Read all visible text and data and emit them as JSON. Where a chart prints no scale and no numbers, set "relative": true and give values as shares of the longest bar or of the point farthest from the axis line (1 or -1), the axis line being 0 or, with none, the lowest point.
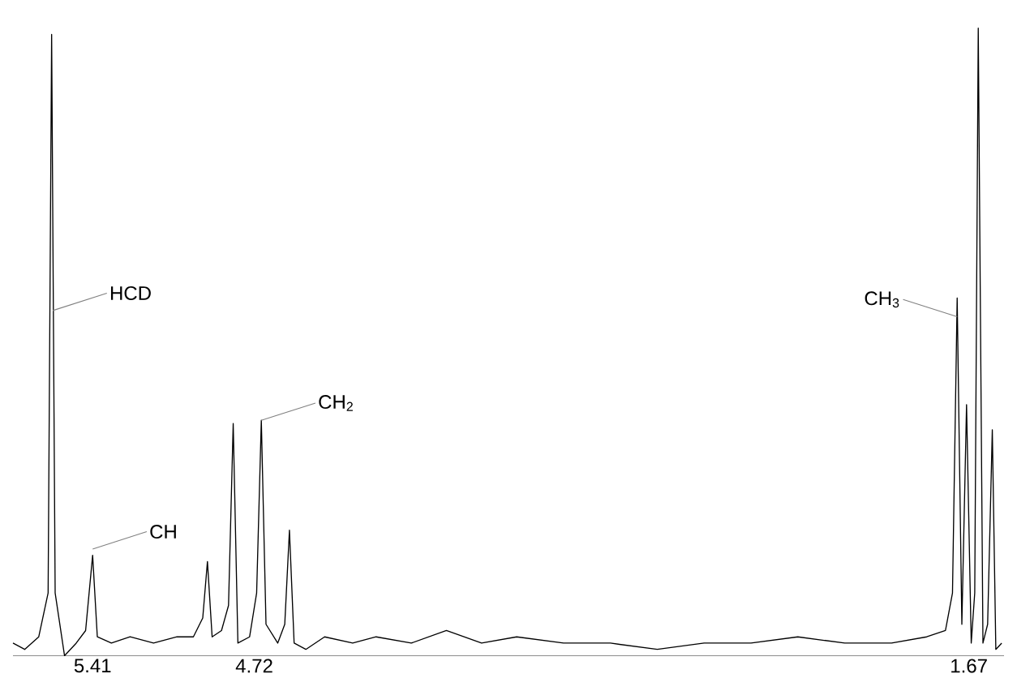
{
  "chart_data": {
    "type": "line",
    "relative": true,
    "color": "#000000",
    "line_style": "solid",
    "marker": "none",
    "tick_labels": "x",
    "xlim": [
      5.75,
      1.52
    ],
    "xticks": [
      5.41,
      4.72,
      1.67
    ],
    "x": [
      5.75,
      5.7,
      5.64,
      5.6,
      5.585,
      5.57,
      5.53,
      5.48,
      5.44,
      5.41,
      5.39,
      5.33,
      5.25,
      5.15,
      5.05,
      4.98,
      4.94,
      4.92,
      4.9,
      4.86,
      4.83,
      4.81,
      4.79,
      4.74,
      4.71,
      4.69,
      4.67,
      4.62,
      4.59,
      4.57,
      4.55,
      4.5,
      4.42,
      4.3,
      4.2,
      4.05,
      3.9,
      3.75,
      3.6,
      3.4,
      3.2,
      3.0,
      2.8,
      2.6,
      2.4,
      2.2,
      2.0,
      1.85,
      1.77,
      1.74,
      1.72,
      1.7,
      1.68,
      1.66,
      1.645,
      1.63,
      1.61,
      1.59,
      1.57,
      1.555,
      1.53
    ],
    "values": [
      0.02,
      0.01,
      0.03,
      0.1,
      0.99,
      0.1,
      0.0,
      0.02,
      0.04,
      0.16,
      0.03,
      0.02,
      0.03,
      0.02,
      0.03,
      0.03,
      0.06,
      0.15,
      0.03,
      0.04,
      0.08,
      0.37,
      0.02,
      0.03,
      0.1,
      0.375,
      0.05,
      0.02,
      0.05,
      0.2,
      0.02,
      0.01,
      0.03,
      0.02,
      0.03,
      0.02,
      0.04,
      0.02,
      0.03,
      0.02,
      0.02,
      0.01,
      0.02,
      0.02,
      0.03,
      0.02,
      0.02,
      0.03,
      0.04,
      0.1,
      0.57,
      0.05,
      0.4,
      0.02,
      0.1,
      1.0,
      0.02,
      0.05,
      0.36,
      0.01,
      0.02
    ],
    "annotations": [
      {
        "text": "HCD",
        "x": 5.58,
        "y": 0.55
      },
      {
        "text": "CH",
        "x": 5.41,
        "y": 0.17
      },
      {
        "text": "CH$_{2}$",
        "x": 4.69,
        "y": 0.375
      },
      {
        "text": "CH$_{3}$",
        "x": 1.72,
        "y": 0.54
      }
    ]
  }
}
